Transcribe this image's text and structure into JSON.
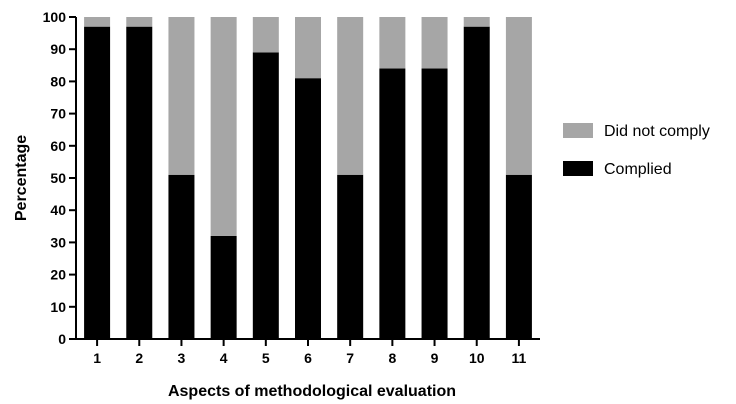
{
  "chart_data": {
    "type": "bar",
    "stacked": true,
    "categories": [
      "1",
      "2",
      "3",
      "4",
      "5",
      "6",
      "7",
      "8",
      "9",
      "10",
      "11"
    ],
    "series": [
      {
        "name": "Complied",
        "color": "#000000",
        "values": [
          97,
          97,
          51,
          32,
          89,
          81,
          51,
          84,
          84,
          97,
          51
        ]
      },
      {
        "name": "Did not comply",
        "color": "#a6a6a6",
        "values": [
          3,
          3,
          49,
          68,
          11,
          19,
          49,
          16,
          16,
          3,
          49
        ]
      }
    ],
    "xlabel": "Aspects of methodological evaluation",
    "ylabel": "Percentage",
    "ylim": [
      0,
      100
    ],
    "yticks": [
      "0",
      "10",
      "20",
      "30",
      "40",
      "50",
      "60",
      "70",
      "80",
      "90",
      "100"
    ],
    "grid": false,
    "legend": {
      "placement": "right",
      "items": [
        {
          "label": "Did not comply",
          "color": "#a6a6a6"
        },
        {
          "label": "Complied",
          "color": "#000000"
        }
      ]
    }
  }
}
